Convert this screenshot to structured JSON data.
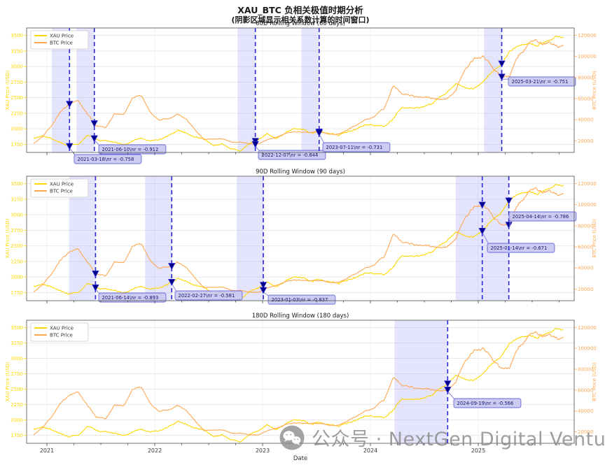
{
  "figure": {
    "title": "XAU_BTC 负相关极值时期分析",
    "subtitle": "(阴影区域显示相关系数计算的时间窗口)",
    "watermark_text": "公众号 · NextGen Digital Venture"
  },
  "colors": {
    "xau": "#FFD700",
    "btc": "#FFA852",
    "band": "#8282F0",
    "extreme_line": "#2929D6",
    "marker_fill": "#00008B",
    "marker_edge": "#2929D6",
    "annotation_bg": "#C6C6F2",
    "annotation_border": "#6A6AD8",
    "annotation_text": "#16166B",
    "arrow": "#8888DD",
    "grid": "#e6e6e6",
    "spine": "#606060",
    "watermark": "#8a8a8a"
  },
  "chart_data": {
    "type": "line",
    "xlabel": "Date",
    "x_tick_labels": [
      "2021",
      "2022",
      "2023",
      "2024",
      "2025"
    ],
    "ylabel_left": "XAU Price (USD)",
    "ylabel_right": "BTC Price (USD)",
    "yticks_left": [
      1750,
      2000,
      2250,
      2500,
      2750,
      3000,
      3250,
      3500
    ],
    "yticks_right": [
      20000,
      40000,
      60000,
      80000,
      100000,
      120000
    ],
    "ylim_left": [
      1620,
      3620
    ],
    "ylim_right": [
      9000,
      127000
    ],
    "legend": [
      "XAU Price",
      "BTC Price"
    ],
    "months": [
      "2020-11",
      "2020-12",
      "2021-01",
      "2021-02",
      "2021-03",
      "2021-04",
      "2021-05",
      "2021-06",
      "2021-07",
      "2021-08",
      "2021-09",
      "2021-10",
      "2021-11",
      "2021-12",
      "2022-01",
      "2022-02",
      "2022-03",
      "2022-04",
      "2022-05",
      "2022-06",
      "2022-07",
      "2022-08",
      "2022-09",
      "2022-10",
      "2022-11",
      "2022-12",
      "2023-01",
      "2023-02",
      "2023-03",
      "2023-04",
      "2023-05",
      "2023-06",
      "2023-07",
      "2023-08",
      "2023-09",
      "2023-10",
      "2023-11",
      "2023-12",
      "2024-01",
      "2024-02",
      "2024-03",
      "2024-04",
      "2024-05",
      "2024-06",
      "2024-07",
      "2024-08",
      "2024-09",
      "2024-10",
      "2024-11",
      "2024-12",
      "2025-01",
      "2025-02",
      "2025-03",
      "2025-04",
      "2025-05",
      "2025-06",
      "2025-07",
      "2025-08",
      "2025-09",
      "2025-10"
    ],
    "series": [
      {
        "name": "XAU Price",
        "axis": "left",
        "values": [
          1840,
          1880,
          1850,
          1780,
          1720,
          1770,
          1890,
          1840,
          1810,
          1790,
          1750,
          1780,
          1830,
          1800,
          1820,
          1900,
          1980,
          1930,
          1850,
          1830,
          1730,
          1760,
          1670,
          1650,
          1750,
          1800,
          1920,
          1850,
          1950,
          2000,
          1990,
          1930,
          1950,
          1920,
          1880,
          1970,
          2010,
          2050,
          2030,
          2040,
          2160,
          2330,
          2350,
          2320,
          2400,
          2500,
          2580,
          2740,
          2650,
          2630,
          2750,
          2900,
          3000,
          3250,
          3300,
          3350,
          3340,
          3400,
          3480,
          3480
        ]
      },
      {
        "name": "BTC Price",
        "axis": "right",
        "values": [
          17000,
          23000,
          34000,
          48000,
          55000,
          58000,
          46000,
          34000,
          33000,
          46000,
          45000,
          60000,
          62000,
          49000,
          40000,
          40000,
          44000,
          41000,
          31000,
          21000,
          22000,
          21500,
          19500,
          19800,
          16800,
          16800,
          21000,
          23500,
          26000,
          28500,
          27000,
          28500,
          29500,
          27000,
          26500,
          31500,
          36500,
          42500,
          42500,
          50000,
          68000,
          64500,
          66000,
          63500,
          62000,
          59000,
          61000,
          68000,
          88000,
          99000,
          101000,
          92000,
          84000,
          83000,
          103000,
          106000,
          115000,
          114000,
          113000,
          116000
        ]
      }
    ],
    "subplots": [
      {
        "title": "60D Rolling Window (60 days)",
        "window_days": 60,
        "extremes": [
          {
            "date": "2021-03-18",
            "r": -0.758,
            "label": "2021-03-18\\nr = -0.758"
          },
          {
            "date": "2021-06-10",
            "r": -0.912,
            "label": "2021-06-10\\nr = -0.912"
          },
          {
            "date": "2022-12-07",
            "r": -0.844,
            "label": "2022-12-07\\nr = -0.844"
          },
          {
            "date": "2023-07-11",
            "r": -0.731,
            "label": "2023-07-11\\nr = -0.731"
          },
          {
            "date": "2025-03-21",
            "r": -0.751,
            "label": "2025-03-21\\nr = -0.751"
          }
        ]
      },
      {
        "title": "90D Rolling Window (90 days)",
        "window_days": 90,
        "extremes": [
          {
            "date": "2021-06-14",
            "r": -0.893,
            "label": "2021-06-14\\nr = -0.893"
          },
          {
            "date": "2022-02-27",
            "r": -0.581,
            "label": "2022-02-27\\nr = -0.581"
          },
          {
            "date": "2023-01-03",
            "r": -0.837,
            "label": "2023-01-03\\nr = -0.837"
          },
          {
            "date": "2025-01-14",
            "r": -0.671,
            "label": "2025-01-14\\nr = -0.671"
          },
          {
            "date": "2025-04-14",
            "r": -0.786,
            "label": "2025-04-14\\nr = -0.786"
          }
        ]
      },
      {
        "title": "180D Rolling Window (180 days)",
        "window_days": 180,
        "extremes": [
          {
            "date": "2024-09-19",
            "r": -0.566,
            "label": "2024-09-19\\nr = -0.566"
          }
        ]
      }
    ]
  }
}
